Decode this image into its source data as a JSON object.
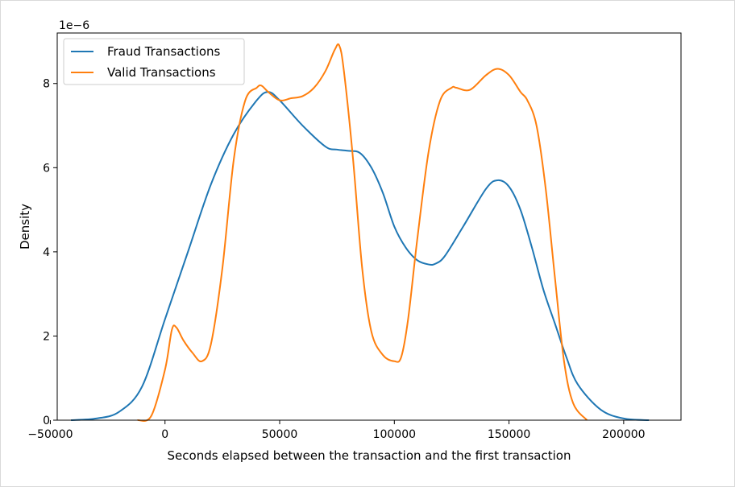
{
  "chart_data": {
    "type": "line",
    "title": "",
    "xlabel": "Seconds elapsed between the transaction and the first transaction",
    "ylabel": "Density",
    "y_offset_label": "1e−6",
    "y_scale": 1e-06,
    "xlim": [
      -47000,
      225000
    ],
    "ylim": [
      0,
      9.2
    ],
    "x_ticks": [
      -50000,
      0,
      50000,
      100000,
      150000,
      200000
    ],
    "x_tick_labels": [
      "−50000",
      "0",
      "50000",
      "100000",
      "150000",
      "200000"
    ],
    "y_ticks": [
      0,
      2,
      4,
      6,
      8
    ],
    "y_tick_labels": [
      "0",
      "2",
      "4",
      "6",
      "8"
    ],
    "grid": false,
    "legend": "top-left",
    "series": [
      {
        "name": "Fraud Transactions",
        "color": "#1f77b4",
        "x": [
          -41000,
          -30000,
          -20000,
          -10000,
          0,
          10000,
          20000,
          30000,
          40000,
          45000,
          50000,
          60000,
          70000,
          75000,
          80000,
          85000,
          90000,
          95000,
          100000,
          105000,
          110000,
          115000,
          118000,
          122000,
          130000,
          140000,
          145000,
          150000,
          155000,
          160000,
          165000,
          170000,
          175000,
          180000,
          190000,
          200000,
          211000
        ],
        "y": [
          0.0,
          0.04,
          0.2,
          0.8,
          2.4,
          4.0,
          5.6,
          6.8,
          7.6,
          7.8,
          7.6,
          7.0,
          6.5,
          6.43,
          6.4,
          6.35,
          6.0,
          5.4,
          4.6,
          4.1,
          3.8,
          3.7,
          3.72,
          3.9,
          4.6,
          5.5,
          5.7,
          5.55,
          5.0,
          4.1,
          3.1,
          2.3,
          1.5,
          0.85,
          0.25,
          0.04,
          0.0
        ]
      },
      {
        "name": "Valid Transactions",
        "color": "#ff7f0e",
        "x": [
          -12000,
          -6000,
          0,
          3000,
          5000,
          8000,
          12000,
          16000,
          20000,
          25000,
          30000,
          35000,
          40000,
          42000,
          45000,
          50000,
          55000,
          60000,
          65000,
          70000,
          74000,
          76000,
          78000,
          82000,
          86000,
          90000,
          95000,
          100000,
          103000,
          106000,
          110000,
          115000,
          120000,
          125000,
          127000,
          133000,
          140000,
          145000,
          150000,
          155000,
          158000,
          162000,
          166000,
          170000,
          174000,
          178000,
          184000
        ],
        "y": [
          0.0,
          0.1,
          1.2,
          2.15,
          2.2,
          1.9,
          1.6,
          1.4,
          1.8,
          3.6,
          6.2,
          7.6,
          7.9,
          7.95,
          7.8,
          7.6,
          7.65,
          7.7,
          7.9,
          8.3,
          8.8,
          8.9,
          8.3,
          6.2,
          3.6,
          2.1,
          1.55,
          1.4,
          1.5,
          2.4,
          4.3,
          6.4,
          7.6,
          7.9,
          7.9,
          7.85,
          8.2,
          8.35,
          8.2,
          7.8,
          7.6,
          7.0,
          5.5,
          3.4,
          1.4,
          0.4,
          0.0
        ]
      }
    ]
  }
}
